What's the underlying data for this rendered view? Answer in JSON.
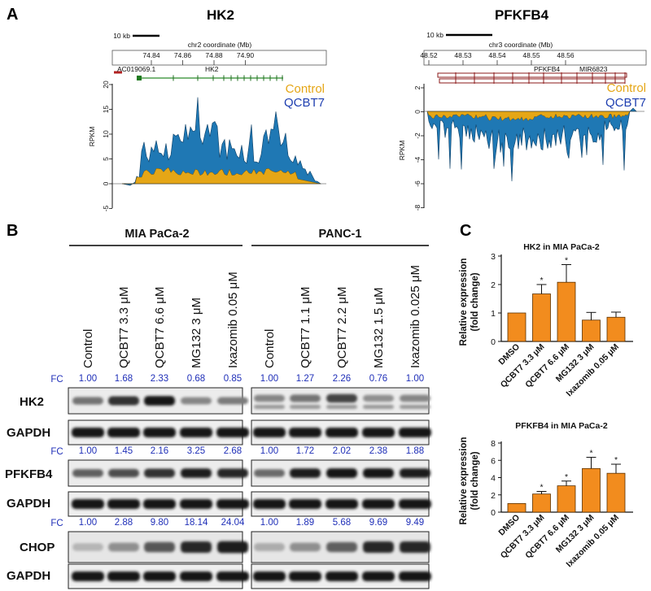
{
  "panels": {
    "A": "A",
    "B": "B",
    "C": "C"
  },
  "panelA": {
    "tracks": [
      {
        "gene_title": "HK2",
        "scalebar_label": "10 kb",
        "coord_label": "chr2 coordinate (Mb)",
        "coord_ticks": [
          "74.84",
          "74.86",
          "74.88",
          "74.90"
        ],
        "gene_labels": [
          "AC019069.1",
          "HK2"
        ],
        "ylabel": "RPKM",
        "yticks": [
          "20",
          "15",
          "10",
          "5",
          "0",
          "-5"
        ],
        "legend": [
          "Control",
          "QCBT7"
        ]
      },
      {
        "gene_title": "PFKFB4",
        "scalebar_label": "10 kb",
        "coord_label": "chr3 coordinate (Mb)",
        "coord_ticks": [
          "48.52",
          "48.53",
          "48.54",
          "48.55",
          "48.56"
        ],
        "gene_labels": [
          "PFKFB4",
          "MIR6823"
        ],
        "ylabel": "RPKM",
        "yticks": [
          "2",
          "0",
          "-2",
          "-4",
          "-6",
          "-8"
        ],
        "legend": [
          "Control",
          "QCBT7"
        ]
      }
    ]
  },
  "panelB": {
    "cell_lines": [
      "MIA PaCa-2",
      "PANC-1"
    ],
    "lanes_mia": [
      "Control",
      "QCBT7 3.3 μM",
      "QCBT7 6.6 μM",
      "MG132 3 μM",
      "Ixazomib 0.05 μM"
    ],
    "lanes_panc": [
      "Control",
      "QCBT7 1.1 μM",
      "QCBT7 2.2 μM",
      "MG132 1.5 μM",
      "Ixazomib 0.025 μM"
    ],
    "fc_label": "FC",
    "blots": [
      {
        "protein": "HK2",
        "loading": "GAPDH",
        "fc_mia": [
          "1.00",
          "1.68",
          "2.33",
          "0.68",
          "0.85"
        ],
        "fc_panc": [
          "1.00",
          "1.27",
          "2.26",
          "0.76",
          "1.00"
        ]
      },
      {
        "protein": "PFKFB4",
        "loading": "GAPDH",
        "fc_mia": [
          "1.00",
          "1.45",
          "2.16",
          "3.25",
          "2.68"
        ],
        "fc_panc": [
          "1.00",
          "1.72",
          "2.02",
          "2.38",
          "1.88"
        ]
      },
      {
        "protein": "CHOP",
        "loading": "GAPDH",
        "fc_mia": [
          "1.00",
          "2.88",
          "9.80",
          "18.14",
          "24.04"
        ],
        "fc_panc": [
          "1.00",
          "1.89",
          "5.68",
          "9.69",
          "9.49"
        ]
      }
    ]
  },
  "chart_data": [
    {
      "type": "bar",
      "title": "HK2 in MIA PaCa-2",
      "ylabel": "Relative expression (fold change)",
      "ylabel_lines": [
        "Relative expression",
        "(fold change)"
      ],
      "categories": [
        "DMSO",
        "QCBT7 3.3 μM",
        "QCBT7 6.6 μM",
        "MG132 3 μM",
        "Ixazomib 0.05 μM"
      ],
      "values": [
        1.0,
        1.67,
        2.08,
        0.75,
        0.85
      ],
      "errors": [
        0.0,
        0.33,
        0.62,
        0.27,
        0.18
      ],
      "significant": [
        false,
        true,
        true,
        false,
        false
      ],
      "yticks": [
        "0",
        "1",
        "2",
        "3"
      ],
      "ylim": [
        0,
        3
      ],
      "color": "#f28c1e"
    },
    {
      "type": "bar",
      "title": "PFKFB4 in MIA PaCa-2",
      "ylabel": "Relative expression (fold change)",
      "ylabel_lines": [
        "Relative expression",
        "(fold change)"
      ],
      "categories": [
        "DMSO",
        "QCBT7 3.3 μM",
        "QCBT7 6.6 μM",
        "MG132 3 μM",
        "Ixazomib 0.05 μM"
      ],
      "values": [
        1.0,
        2.1,
        3.05,
        5.05,
        4.5
      ],
      "errors": [
        0.0,
        0.3,
        0.55,
        1.3,
        1.05
      ],
      "significant": [
        false,
        true,
        true,
        true,
        true
      ],
      "yticks": [
        "0",
        "2",
        "4",
        "6",
        "8"
      ],
      "ylim": [
        0,
        8
      ],
      "color": "#f28c1e"
    }
  ],
  "star": "*"
}
